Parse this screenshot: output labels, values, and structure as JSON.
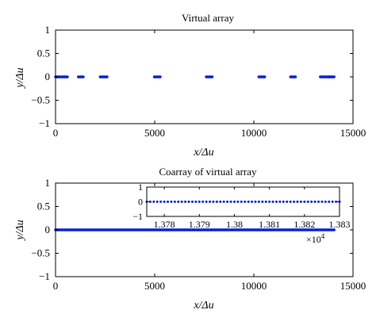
{
  "chart_data": [
    {
      "type": "scatter",
      "title": "Virtual array",
      "xlabel": "x/Δu",
      "ylabel": "y/Δu",
      "xlim": [
        0,
        15000
      ],
      "ylim": [
        -1,
        1
      ],
      "xticks": [
        0,
        5000,
        10000,
        15000
      ],
      "yticks": [
        -1,
        -0.5,
        0,
        0.5,
        1
      ],
      "xtick_labels": [
        "0",
        "5000",
        "10000",
        "15000"
      ],
      "ytick_labels": [
        "−1",
        "−0.5",
        "0",
        "0.5",
        "1"
      ],
      "marker_color": "#0a1fd6",
      "segments": [
        {
          "x_start": 0,
          "x_end": 600,
          "y": 0
        },
        {
          "x_start": 1150,
          "x_end": 1400,
          "y": 0
        },
        {
          "x_start": 2250,
          "x_end": 2600,
          "y": 0
        },
        {
          "x_start": 4980,
          "x_end": 5280,
          "y": 0
        },
        {
          "x_start": 7600,
          "x_end": 7900,
          "y": 0
        },
        {
          "x_start": 10250,
          "x_end": 10550,
          "y": 0
        },
        {
          "x_start": 11850,
          "x_end": 12100,
          "y": 0
        },
        {
          "x_start": 13350,
          "x_end": 13800,
          "y": 0
        },
        {
          "x_start": 13800,
          "x_end": 14050,
          "y": 0
        }
      ]
    },
    {
      "type": "scatter",
      "title": "Coarray of virtual array",
      "xlabel": "x/Δu",
      "ylabel": "y/Δu",
      "xlim": [
        0,
        15000
      ],
      "ylim": [
        -1,
        1
      ],
      "xticks": [
        0,
        5000,
        10000,
        15000
      ],
      "yticks": [
        -1,
        -0.5,
        0,
        0.5,
        1
      ],
      "xtick_labels": [
        "0",
        "5000",
        "10000",
        "15000"
      ],
      "ytick_labels": [
        "−1",
        "−0.5",
        "0",
        "0.5",
        "1"
      ],
      "marker_color": "#0a1fd6",
      "segments": [
        {
          "x_start": 0,
          "x_end": 14050,
          "y": 0
        }
      ],
      "inset": {
        "type": "scatter",
        "xlim": [
          13775,
          13830
        ],
        "ylim": [
          -1,
          1
        ],
        "xticks": [
          13780,
          13790,
          13800,
          13810,
          13820,
          13830
        ],
        "yticks": [
          -1,
          0,
          1
        ],
        "xtick_labels": [
          "1.378",
          "1.379",
          "1.38",
          "1.381",
          "1.382",
          "1.383"
        ],
        "ytick_labels": [
          "−1",
          "0",
          "1"
        ],
        "x_multiplier_label": "×10",
        "x_multiplier_exponent": "4",
        "points": [
          {
            "x": 13775,
            "y": 0
          },
          {
            "x": 13776,
            "y": 0
          },
          {
            "x": 13777,
            "y": 0
          },
          {
            "x": 13778,
            "y": 0
          },
          {
            "x": 13779,
            "y": 0
          },
          {
            "x": 13780,
            "y": 0
          },
          {
            "x": 13781,
            "y": 0
          },
          {
            "x": 13782,
            "y": 0
          },
          {
            "x": 13783,
            "y": 0
          },
          {
            "x": 13784,
            "y": 0
          },
          {
            "x": 13785,
            "y": 0
          },
          {
            "x": 13786,
            "y": 0
          },
          {
            "x": 13787,
            "y": 0
          },
          {
            "x": 13788,
            "y": 0
          },
          {
            "x": 13789,
            "y": 0
          },
          {
            "x": 13790,
            "y": 0
          },
          {
            "x": 13791,
            "y": 0
          },
          {
            "x": 13792,
            "y": 0
          },
          {
            "x": 13793,
            "y": 0
          },
          {
            "x": 13794,
            "y": 0
          },
          {
            "x": 13795,
            "y": 0
          },
          {
            "x": 13796,
            "y": 0
          },
          {
            "x": 13797,
            "y": 0
          },
          {
            "x": 13798,
            "y": 0
          },
          {
            "x": 13799,
            "y": 0
          },
          {
            "x": 13800,
            "y": 0
          },
          {
            "x": 13801,
            "y": 0
          },
          {
            "x": 13802,
            "y": 0
          },
          {
            "x": 13803,
            "y": 0
          },
          {
            "x": 13804,
            "y": 0
          },
          {
            "x": 13805,
            "y": 0
          },
          {
            "x": 13806,
            "y": 0
          },
          {
            "x": 13807,
            "y": 0
          },
          {
            "x": 13808,
            "y": 0
          },
          {
            "x": 13809,
            "y": 0
          },
          {
            "x": 13810,
            "y": 0
          },
          {
            "x": 13811,
            "y": 0
          },
          {
            "x": 13812,
            "y": 0
          },
          {
            "x": 13813,
            "y": 0
          },
          {
            "x": 13814,
            "y": 0
          },
          {
            "x": 13815,
            "y": 0
          },
          {
            "x": 13816,
            "y": 0
          },
          {
            "x": 13817,
            "y": 0
          },
          {
            "x": 13818,
            "y": 0
          },
          {
            "x": 13819,
            "y": 0
          },
          {
            "x": 13820,
            "y": 0
          },
          {
            "x": 13821,
            "y": 0
          },
          {
            "x": 13822,
            "y": 0
          },
          {
            "x": 13823,
            "y": 0
          },
          {
            "x": 13824,
            "y": 0
          },
          {
            "x": 13825,
            "y": 0
          },
          {
            "x": 13826,
            "y": 0
          },
          {
            "x": 13827,
            "y": 0
          },
          {
            "x": 13828,
            "y": 0
          },
          {
            "x": 13829,
            "y": 0
          },
          {
            "x": 13830,
            "y": 0
          }
        ]
      }
    }
  ]
}
